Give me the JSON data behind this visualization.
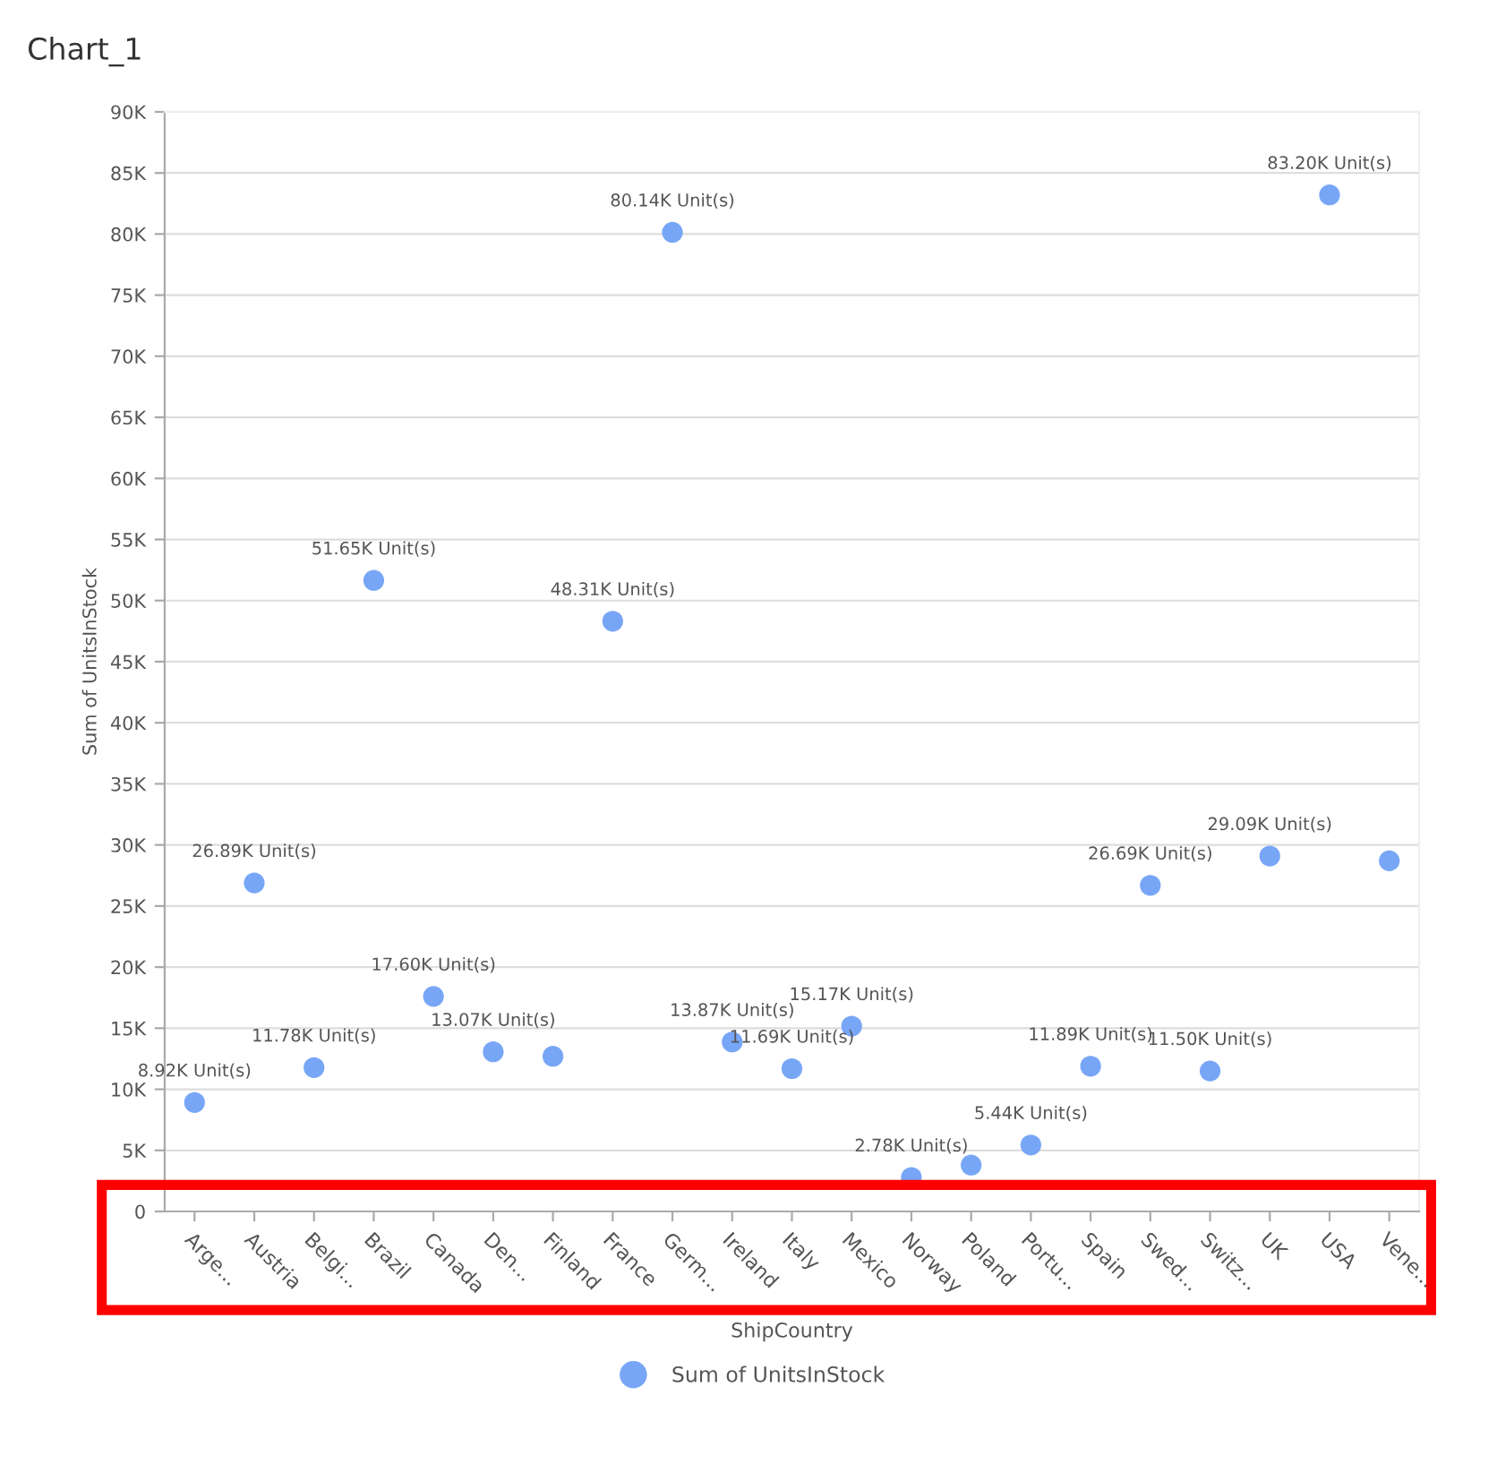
{
  "chart_data": {
    "type": "scatter",
    "title": "Chart_1",
    "xlabel": "ShipCountry",
    "ylabel": "Sum of UnitsInStock",
    "categories": [
      "Arge...",
      "Austria",
      "Belgi...",
      "Brazil",
      "Canada",
      "Den...",
      "Finland",
      "France",
      "Germ...",
      "Ireland",
      "Italy",
      "Mexico",
      "Norway",
      "Poland",
      "Portu...",
      "Spain",
      "Swed...",
      "Switz...",
      "UK",
      "USA",
      "Vene..."
    ],
    "series": [
      {
        "name": "Sum of UnitsInStock",
        "color": "#78a6f7",
        "values": [
          8.92,
          26.89,
          11.78,
          51.65,
          17.6,
          13.07,
          12.7,
          48.31,
          80.14,
          13.87,
          11.69,
          15.17,
          2.78,
          3.8,
          5.44,
          11.89,
          26.69,
          11.5,
          29.09,
          83.2,
          28.7
        ],
        "value_labels": [
          "8.92K Unit(s)",
          "26.89K Unit(s)",
          "11.78K Unit(s)",
          "51.65K Unit(s)",
          "17.60K Unit(s)",
          "13.07K Unit(s)",
          null,
          "48.31K Unit(s)",
          "80.14K Unit(s)",
          "13.87K Unit(s)",
          "11.69K Unit(s)",
          "15.17K Unit(s)",
          "2.78K Unit(s)",
          null,
          "5.44K Unit(s)",
          "11.89K Unit(s)",
          "26.69K Unit(s)",
          "11.50K Unit(s)",
          "29.09K Unit(s)",
          "83.20K Unit(s)",
          null
        ]
      }
    ],
    "ylim": [
      0,
      90
    ],
    "yticks": [
      {
        "value": 0,
        "label": "0"
      },
      {
        "value": 5,
        "label": "5K"
      },
      {
        "value": 10,
        "label": "10K"
      },
      {
        "value": 15,
        "label": "15K"
      },
      {
        "value": 20,
        "label": "20K"
      },
      {
        "value": 25,
        "label": "25K"
      },
      {
        "value": 30,
        "label": "30K"
      },
      {
        "value": 35,
        "label": "35K"
      },
      {
        "value": 40,
        "label": "40K"
      },
      {
        "value": 45,
        "label": "45K"
      },
      {
        "value": 50,
        "label": "50K"
      },
      {
        "value": 55,
        "label": "55K"
      },
      {
        "value": 60,
        "label": "60K"
      },
      {
        "value": 65,
        "label": "65K"
      },
      {
        "value": 70,
        "label": "70K"
      },
      {
        "value": 75,
        "label": "75K"
      },
      {
        "value": 80,
        "label": "80K"
      },
      {
        "value": 85,
        "label": "85K"
      },
      {
        "value": 90,
        "label": "90K"
      }
    ],
    "grid": "y",
    "legend": "bottom",
    "marker": "circle"
  }
}
